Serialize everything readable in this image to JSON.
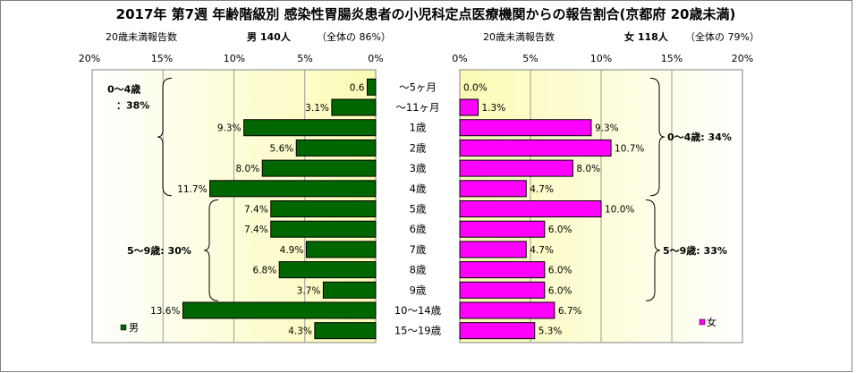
{
  "chart_data": {
    "type": "bar",
    "title": "2017年 第7週 年齢階級別 感染性胃腸炎患者の小児科定点医療機関からの報告割合(京都府 20歳未満)",
    "categories": [
      "～5ヶ月",
      "～11ヶ月",
      "1歳",
      "2歳",
      "3歳",
      "4歳",
      "5歳",
      "6歳",
      "7歳",
      "8歳",
      "9歳",
      "10～14歳",
      "15～19歳"
    ],
    "axis_ticks": [
      "20%",
      "15%",
      "10%",
      "5%",
      "0%",
      "0%",
      "5%",
      "10%",
      "15%",
      "20%"
    ],
    "xlim": [
      0,
      20
    ],
    "series": [
      {
        "name": "男",
        "header_label": "20歳未満報告数",
        "header_value": "男 140人",
        "header_share": "（全体の 86%）",
        "color": "#006600",
        "values": [
          0.6,
          3.1,
          9.3,
          5.6,
          8.0,
          11.7,
          7.4,
          7.4,
          4.9,
          6.8,
          3.7,
          13.6,
          4.3
        ],
        "value_labels": [
          "0.6",
          "3.1%",
          "9.3%",
          "5.6%",
          "8.0%",
          "11.7%",
          "7.4%",
          "7.4%",
          "4.9%",
          "6.8%",
          "3.7%",
          "13.6%",
          "4.3%"
        ],
        "brackets": [
          {
            "label1": "0～4歳",
            "label2": "：38%",
            "from": 0,
            "to": 5
          },
          {
            "label1": "5～9歳: 30%",
            "label2": "",
            "from": 6,
            "to": 10
          }
        ]
      },
      {
        "name": "女",
        "header_label": "20歳未満報告数",
        "header_value": "女 118人",
        "header_share": "（全体の 79%）",
        "color": "#ff00ff",
        "values": [
          0.0,
          1.3,
          9.3,
          10.7,
          8.0,
          4.7,
          10.0,
          6.0,
          4.7,
          6.0,
          6.0,
          6.7,
          5.3
        ],
        "value_labels": [
          "0.0%",
          "1.3%",
          "9.3%",
          "10.7%",
          "8.0%",
          "4.7%",
          "10.0%",
          "6.0%",
          "4.7%",
          "6.0%",
          "6.0%",
          "6.7%",
          "5.3%"
        ],
        "brackets": [
          {
            "label1": "0～4歳: 34%",
            "label2": "",
            "from": 0,
            "to": 5
          },
          {
            "label1": "5～9歳: 33%",
            "label2": "",
            "from": 6,
            "to": 10
          }
        ]
      }
    ],
    "grid": true,
    "legend": "bottom-left / bottom-right"
  }
}
